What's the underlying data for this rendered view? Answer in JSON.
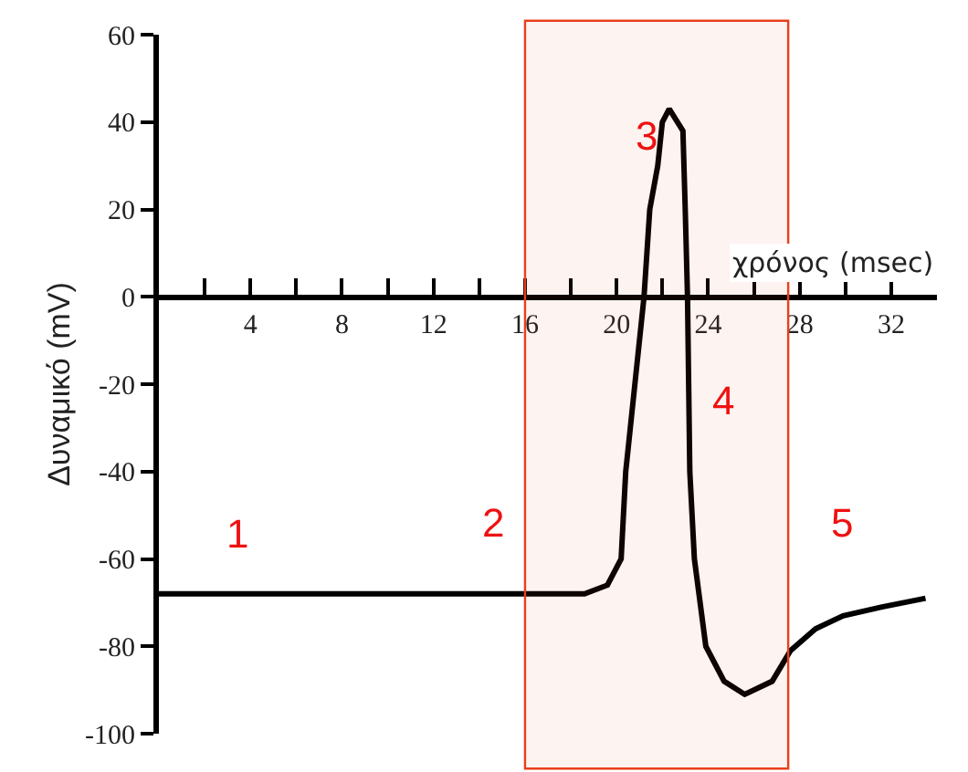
{
  "chart_data": {
    "type": "line",
    "xlabel": "χρόνος (msec)",
    "ylabel": "Δυναμικό (mV)",
    "x": [
      0,
      4,
      8,
      12,
      16,
      18.6,
      19.6,
      20.2,
      20.4,
      20.8,
      21.2,
      21.45,
      21.8,
      22.0,
      22.3,
      22.9,
      23.0,
      23.1,
      23.15,
      23.2,
      23.4,
      23.9,
      24.7,
      25.6,
      26.8,
      27.6,
      28.7,
      29.9,
      31.6,
      33.5
    ],
    "series": [
      {
        "color": "#000000",
        "values": [
          -68,
          -68,
          -68,
          -68,
          -68,
          -68,
          -66,
          -60,
          -40,
          -20,
          0,
          20,
          30,
          40,
          43,
          38,
          20,
          0,
          -20,
          -40,
          -60,
          -80,
          -88,
          -91,
          -88,
          -81,
          -76,
          -73,
          -71,
          -69
        ]
      }
    ],
    "xlim": [
      0,
      34
    ],
    "ylim": [
      -100,
      60
    ],
    "xticks": [
      {
        "value": 2,
        "label": null
      },
      4,
      {
        "value": 6,
        "label": null
      },
      8,
      {
        "value": 10,
        "label": null
      },
      12,
      {
        "value": 14,
        "label": null
      },
      16,
      {
        "value": 18,
        "label": null
      },
      20,
      {
        "value": 22,
        "label": null
      },
      24,
      {
        "value": 26,
        "label": null
      },
      28,
      {
        "value": 30,
        "label": null
      },
      32
    ],
    "yticks": [
      -100,
      -80,
      -60,
      -40,
      -20,
      0,
      20,
      40,
      60
    ],
    "bands": [
      {
        "axis": "x",
        "from": 16,
        "to": 27.5,
        "color": "#e8401c"
      }
    ],
    "annotations": [
      "1",
      "2",
      "3",
      "4",
      "5"
    ],
    "marker": "none",
    "line_style": "solid"
  }
}
